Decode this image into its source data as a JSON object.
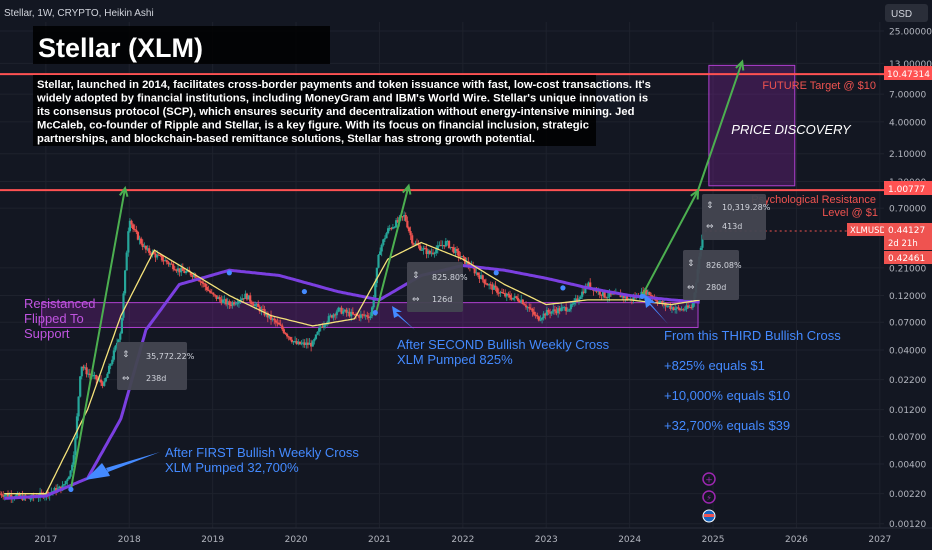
{
  "header": {
    "symbol_info": "Stellar, 1W, CRYPTO, Heikin Ashi",
    "currency": "USD"
  },
  "title": "Stellar (XLM)",
  "description": [
    "Stellar, launched in 2014, facilitates cross-border payments and token issuance with fast, low-cost transactions. It's",
    "widely adopted by financial institutions, including MoneyGram and IBM's World Wire. Stellar's unique innovation is",
    "its consensus protocol (SCP), which ensures security and decentralization without energy-intensive mining. Jed",
    "McCaleb, co-founder of Ripple and Stellar, is a key figure. With its focus on financial inclusion, strategic",
    "partnerships, and blockchain-based remittance solutions, Stellar has strong growth potential."
  ],
  "annotations": {
    "future_target": "FUTURE Target @ $10",
    "psych_resistance": [
      "Psychological Resistance",
      "Level @ $1"
    ],
    "price_discovery": "PRICE DISCOVERY",
    "resistance_flipped": [
      "Resistanced",
      "Flipped To",
      "Support"
    ],
    "first_cross": [
      "After FIRST Bullish Weekly Cross",
      "XLM Pumped 32,700%"
    ],
    "second_cross": [
      "After SECOND Bullish Weekly Cross",
      "XLM Pumped 825%"
    ],
    "third_cross": "From this THIRD Bullish Cross",
    "targets": [
      "+825% equals $1",
      "+10,000% equals $10",
      "+32,700% equals $39"
    ]
  },
  "measure_boxes": [
    {
      "pct": "35,772.22%",
      "days": "238d"
    },
    {
      "pct": "825.80%",
      "days": "126d"
    },
    {
      "pct": "826.08%",
      "days": "280d"
    },
    {
      "pct": "10,319.28%",
      "days": "413d"
    }
  ],
  "price_labels": {
    "target": "10.47314",
    "psych": "1.00777",
    "xlmusd": "XLMUSD",
    "current": "0.44127",
    "countdown": "2d 21h",
    "open": "0.42461"
  },
  "colors": {
    "up": "#26a69a",
    "down": "#ef5350",
    "ma_short": "#f5e27a",
    "ma_long": "#7b3fe0",
    "arrow": "#4caf50",
    "zone": "#8e24aa",
    "blue_text": "#448aff",
    "red_line": "#ff5252"
  },
  "chart_data": {
    "type": "candlestick",
    "title": "Stellar, 1W, CRYPTO, Heikin Ashi",
    "y_scale": "log",
    "ylim": [
      0.0011,
      30
    ],
    "y_ticks": [
      "25.00000",
      "13.00000",
      "7.00000",
      "4.00000",
      "2.10000",
      "1.20000",
      "0.70000",
      "0.21000",
      "0.12000",
      "0.07000",
      "0.04000",
      "0.02200",
      "0.01200",
      "0.00700",
      "0.00400",
      "0.00220",
      "0.00120"
    ],
    "x_ticks": [
      "2017",
      "2018",
      "2019",
      "2020",
      "2021",
      "2022",
      "2023",
      "2024",
      "2025",
      "2026",
      "2027"
    ],
    "price_path": [
      [
        2016.45,
        0.0022
      ],
      [
        2016.8,
        0.002
      ],
      [
        2017.0,
        0.0022
      ],
      [
        2017.2,
        0.0025
      ],
      [
        2017.3,
        0.0035
      ],
      [
        2017.35,
        0.006
      ],
      [
        2017.42,
        0.03
      ],
      [
        2017.5,
        0.025
      ],
      [
        2017.7,
        0.02
      ],
      [
        2017.9,
        0.06
      ],
      [
        2018.0,
        0.6
      ],
      [
        2018.05,
        0.45
      ],
      [
        2018.2,
        0.3
      ],
      [
        2018.4,
        0.25
      ],
      [
        2018.6,
        0.2
      ],
      [
        2018.8,
        0.18
      ],
      [
        2019.0,
        0.12
      ],
      [
        2019.2,
        0.1
      ],
      [
        2019.4,
        0.12
      ],
      [
        2019.5,
        0.1
      ],
      [
        2019.8,
        0.065
      ],
      [
        2020.0,
        0.045
      ],
      [
        2020.2,
        0.045
      ],
      [
        2020.3,
        0.065
      ],
      [
        2020.5,
        0.09
      ],
      [
        2020.7,
        0.08
      ],
      [
        2020.9,
        0.08
      ],
      [
        2021.0,
        0.3
      ],
      [
        2021.1,
        0.45
      ],
      [
        2021.3,
        0.6
      ],
      [
        2021.4,
        0.35
      ],
      [
        2021.6,
        0.28
      ],
      [
        2021.8,
        0.35
      ],
      [
        2022.0,
        0.25
      ],
      [
        2022.3,
        0.15
      ],
      [
        2022.5,
        0.12
      ],
      [
        2022.7,
        0.11
      ],
      [
        2022.9,
        0.075
      ],
      [
        2023.0,
        0.085
      ],
      [
        2023.3,
        0.095
      ],
      [
        2023.5,
        0.15
      ],
      [
        2023.7,
        0.12
      ],
      [
        2023.9,
        0.12
      ],
      [
        2024.0,
        0.11
      ],
      [
        2024.2,
        0.13
      ],
      [
        2024.4,
        0.1
      ],
      [
        2024.6,
        0.09
      ],
      [
        2024.75,
        0.095
      ],
      [
        2024.88,
        0.44
      ]
    ],
    "ma_short": [
      [
        2016.5,
        0.0022
      ],
      [
        2017.0,
        0.0022
      ],
      [
        2017.5,
        0.012
      ],
      [
        2017.9,
        0.08
      ],
      [
        2018.3,
        0.3
      ],
      [
        2018.7,
        0.2
      ],
      [
        2019.2,
        0.12
      ],
      [
        2019.7,
        0.08
      ],
      [
        2020.2,
        0.065
      ],
      [
        2020.7,
        0.075
      ],
      [
        2021.1,
        0.25
      ],
      [
        2021.5,
        0.35
      ],
      [
        2022.0,
        0.25
      ],
      [
        2022.5,
        0.15
      ],
      [
        2023.0,
        0.1
      ],
      [
        2023.5,
        0.11
      ],
      [
        2024.0,
        0.11
      ],
      [
        2024.5,
        0.1
      ],
      [
        2024.85,
        0.11
      ]
    ],
    "ma_long": [
      [
        2016.5,
        0.002
      ],
      [
        2017.0,
        0.0021
      ],
      [
        2017.5,
        0.003
      ],
      [
        2017.9,
        0.01
      ],
      [
        2018.2,
        0.06
      ],
      [
        2018.6,
        0.15
      ],
      [
        2019.2,
        0.2
      ],
      [
        2019.8,
        0.18
      ],
      [
        2020.5,
        0.13
      ],
      [
        2021.0,
        0.11
      ],
      [
        2021.5,
        0.18
      ],
      [
        2022.0,
        0.22
      ],
      [
        2022.5,
        0.2
      ],
      [
        2023.0,
        0.17
      ],
      [
        2023.5,
        0.14
      ],
      [
        2024.0,
        0.12
      ],
      [
        2024.5,
        0.11
      ],
      [
        2024.85,
        0.105
      ]
    ],
    "horizontal_levels": [
      10.47314,
      1.00777
    ],
    "support_zone": [
      0.063,
      0.104
    ],
    "projection_zone": {
      "x": [
        2024.95,
        2025.98
      ],
      "y": [
        1.1,
        12.5
      ]
    }
  }
}
